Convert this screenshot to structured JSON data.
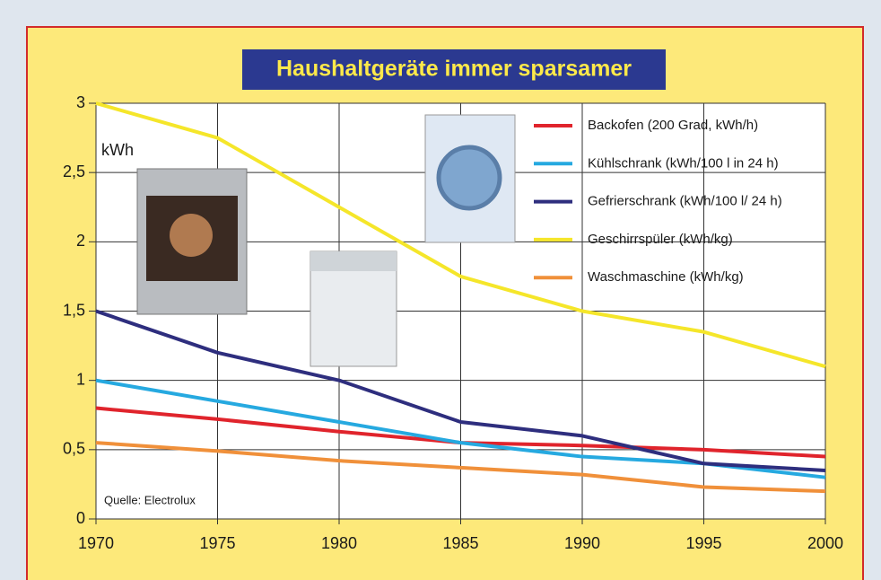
{
  "chart_data": {
    "type": "line",
    "title": "Haushaltgeräte immer sparsamer",
    "y_label": "kWh",
    "source": "Quelle: Electrolux",
    "x": [
      1970,
      1975,
      1980,
      1985,
      1990,
      1995,
      2000
    ],
    "xlim": [
      1970,
      2000
    ],
    "xticks": [
      1970,
      1975,
      1980,
      1985,
      1990,
      1995,
      2000
    ],
    "ylim": [
      0,
      3
    ],
    "yticks": [
      0,
      {
        "value": 0.5,
        "label": "0,5"
      },
      1,
      {
        "value": 1.5,
        "label": "1,5"
      },
      2,
      {
        "value": 2.5,
        "label": "2,5"
      },
      3
    ],
    "grid": true,
    "legend": "top-right",
    "series": [
      {
        "name": "Backofen (200 Grad, kWh/h)",
        "color": "#e0242c",
        "values": [
          0.8,
          0.72,
          0.63,
          0.55,
          0.53,
          0.5,
          0.45
        ]
      },
      {
        "name": "Kühlschrank (kWh/100 l in 24 h)",
        "color": "#26a9e0",
        "values": [
          1.0,
          0.85,
          0.7,
          0.55,
          0.45,
          0.4,
          0.3
        ]
      },
      {
        "name": "Gefrierschrank (kWh/100 l/ 24 h)",
        "color": "#2e2e7e",
        "values": [
          1.5,
          1.2,
          1.0,
          0.7,
          0.6,
          0.4,
          0.35
        ]
      },
      {
        "name": "Geschirrspüler (kWh/kg)",
        "color": "#f5e62a",
        "values": [
          3.0,
          2.75,
          2.25,
          1.75,
          1.5,
          1.35,
          1.1
        ]
      },
      {
        "name": "Waschmaschine (kWh/kg)",
        "color": "#f0903a",
        "values": [
          0.55,
          0.49,
          0.42,
          0.37,
          0.32,
          0.23,
          0.2
        ]
      }
    ]
  }
}
